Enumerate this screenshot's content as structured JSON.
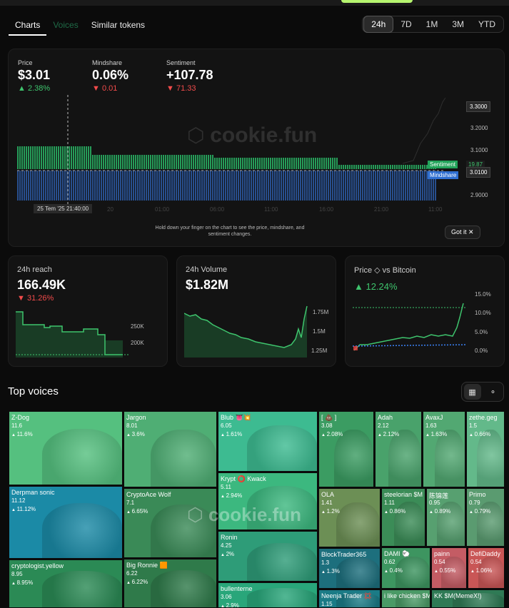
{
  "tabs": [
    "Charts",
    "Voices",
    "Similar tokens"
  ],
  "ranges": [
    "24h",
    "7D",
    "1M",
    "3M",
    "YTD"
  ],
  "metrics": {
    "price": {
      "label": "Price",
      "value": "$3.01",
      "delta": "2.38%"
    },
    "mindshare": {
      "label": "Mindshare",
      "value": "0.06%",
      "delta": "0.01"
    },
    "sentiment": {
      "label": "Sentiment",
      "value": "+107.78",
      "delta": "71.33"
    }
  },
  "main_chart": {
    "watermark": "cookie.fun",
    "y_axis": [
      "3.3000",
      "3.2000",
      "3.1000",
      "3.0000",
      "2.9000"
    ],
    "x_axis": [
      "20",
      "01:00",
      "06:00",
      "11:00",
      "16:00",
      "21:00",
      "11:00"
    ],
    "cursor_time": "25 Tem '25    21:40:00",
    "sentiment_tag": "Sentiment",
    "sentiment_value": "19.87",
    "mindshare_tag": "Mindshare",
    "price_tag": "3.0100",
    "hint": "Hold down your finger on the chart to see the price, mindshare, and sentiment changes.",
    "got_it": "Got it",
    "colors": {
      "sentiment": "#2ecc71",
      "mindshare": "#3b82f6",
      "price": "#ffffff"
    }
  },
  "reach": {
    "title": "24h reach",
    "value": "166.49K",
    "delta": "31.26%",
    "y_axis": [
      "250K",
      "200K"
    ]
  },
  "volume": {
    "title": "24h Volume",
    "value": "$1.82M",
    "y_axis": [
      "1.75M",
      "1.5M",
      "1.25M"
    ]
  },
  "vsbtc": {
    "title": "Price ◇ vs Bitcoin",
    "delta": "12.24%",
    "y_axis": [
      "15.0%",
      "10.0%",
      "5.0%",
      "0.0%"
    ]
  },
  "top_voices": {
    "title": "Top voices",
    "watermark": "cookie.fun",
    "tiles": [
      {
        "name": "Z-Dog",
        "score": "11.6",
        "pct": "11.6%",
        "color": "#55c07f",
        "icon": "soldier-avatar"
      },
      {
        "name": "Jargon",
        "score": "8.01",
        "pct": "3.6%",
        "color": "#4fae74",
        "icon": "wreath-avatar"
      },
      {
        "name": "Blub 👅💥",
        "score": "6.05",
        "pct": "1.61%",
        "color": "#3dbb91",
        "icon": "chef-avatar"
      },
      {
        "name": "[ 💩 ]",
        "score": "3.08",
        "pct": "2.08%",
        "color": "#3b9c62",
        "icon": "masked-avatar"
      },
      {
        "name": "Adah",
        "score": "2.12",
        "pct": "2.12%",
        "color": "#49a26b",
        "icon": "hood-avatar"
      },
      {
        "name": "AvaxJ",
        "score": "1.63",
        "pct": "1.63%",
        "color": "#52a872",
        "icon": "bearded-avatar"
      },
      {
        "name": "zethe.geg",
        "score": "1.5",
        "pct": "0.66%",
        "color": "#63b98a",
        "icon": "ghost-avatar"
      },
      {
        "name": "Derpman sonic",
        "score": "11.12",
        "pct": "11.12%",
        "color": "#1b8aa6",
        "icon": "frog-avatar"
      },
      {
        "name": "CryptoAce Wolf",
        "score": "7.1",
        "pct": "6.65%",
        "color": "#3a8a57",
        "icon": "wolf-avatar"
      },
      {
        "name": "Krypt ⭕ Kwack",
        "score": "5.11",
        "pct": "2.94%",
        "color": "#3cb87f",
        "icon": "duck-avatar"
      },
      {
        "name": "OLA",
        "score": "1.41",
        "pct": "1.2%",
        "color": "#6c8f55",
        "icon": "mushroom-avatar"
      },
      {
        "name": "steelorian $M",
        "score": "1.11",
        "pct": "0.86%",
        "color": "#3b8c57",
        "icon": "cat-avatar"
      },
      {
        "name": "陈锦莲",
        "score": "0.95",
        "pct": "0.89%",
        "color": "#57a070",
        "icon": "pixel-avatar"
      },
      {
        "name": "Primo",
        "score": "0.79",
        "pct": "0.79%",
        "color": "#5a9b70",
        "icon": "monkey-avatar"
      },
      {
        "name": "Ronin",
        "score": "4.25",
        "pct": "2%",
        "color": "#2e9c78",
        "icon": "ninja-avatar"
      },
      {
        "name": "BlockTrader365",
        "score": "1.3",
        "pct": "1.3%",
        "color": "#1d6f7d",
        "icon": "cube-avatar"
      },
      {
        "name": "DAMI 🐑",
        "score": "0.62",
        "pct": "0.4%",
        "color": "#3d9560",
        "icon": "man-avatar"
      },
      {
        "name": "painn",
        "score": "0.54",
        "pct": "0.55%",
        "color": "#c45c64",
        "icon": "pink-avatar"
      },
      {
        "name": "DefiDaddy",
        "score": "0.54",
        "pct": "1.06%",
        "color": "#c95656",
        "icon": "red-avatar"
      },
      {
        "name": "cryptologist.yellow",
        "score": "8.95",
        "pct": "8.95%",
        "color": "#2b8a55",
        "icon": "gremlin-avatar"
      },
      {
        "name": "Big Ronnie 🟧",
        "score": "6.22",
        "pct": "6.22%",
        "color": "#2f7a4a",
        "icon": "muscle-avatar"
      },
      {
        "name": "bullenterne",
        "score": "3.06",
        "pct": "2.9%",
        "color": "#29a67a",
        "icon": "bull-avatar"
      },
      {
        "name": "Neenja Trader 💢",
        "score": "1.15",
        "pct": "",
        "color": "#1b7b86",
        "icon": "trader-avatar"
      },
      {
        "name": "i like chicken $M",
        "score": "",
        "pct": "",
        "color": "#4a9a66",
        "icon": "chicken-avatar"
      },
      {
        "name": "KK $M(MemeX!)",
        "score": "",
        "pct": "",
        "color": "#2f7a55",
        "icon": "kk-avatar"
      }
    ]
  }
}
